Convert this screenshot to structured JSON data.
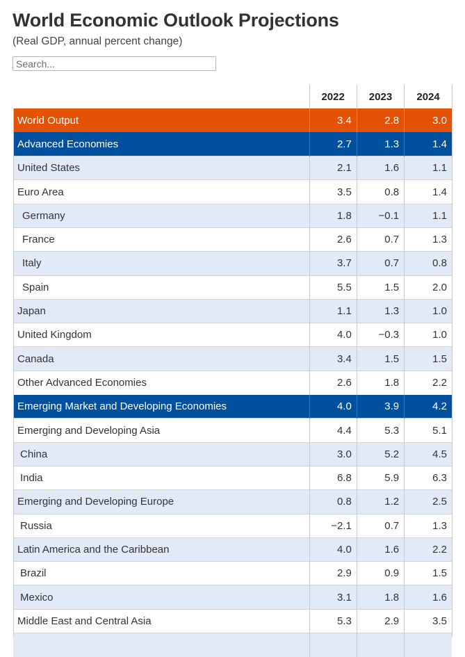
{
  "header": {
    "title": "World Economic Outlook Projections",
    "subtitle": "(Real GDP, annual percent change)"
  },
  "search": {
    "placeholder": "Search..."
  },
  "table": {
    "columns": [
      "",
      "2022",
      "2023",
      "2024"
    ],
    "rows": [
      {
        "name": "World Output",
        "v2022": "3.4",
        "v2023": "2.8",
        "v2024": "3.0",
        "style": "world",
        "indent": 0
      },
      {
        "name": "Advanced Economies",
        "v2022": "2.7",
        "v2023": "1.3",
        "v2024": "1.4",
        "style": "group",
        "indent": 0
      },
      {
        "name": "United States",
        "v2022": "2.1",
        "v2023": "1.6",
        "v2024": "1.1",
        "style": "band",
        "indent": 0
      },
      {
        "name": "Euro Area",
        "v2022": "3.5",
        "v2023": "0.8",
        "v2024": "1.4",
        "style": "plain",
        "indent": 0
      },
      {
        "name": "Germany",
        "v2022": "1.8",
        "v2023": "−0.1",
        "v2024": "1.1",
        "style": "band",
        "indent": 1
      },
      {
        "name": "France",
        "v2022": "2.6",
        "v2023": "0.7",
        "v2024": "1.3",
        "style": "plain",
        "indent": 1
      },
      {
        "name": "Italy",
        "v2022": "3.7",
        "v2023": "0.7",
        "v2024": "0.8",
        "style": "band",
        "indent": 1
      },
      {
        "name": "Spain",
        "v2022": "5.5",
        "v2023": "1.5",
        "v2024": "2.0",
        "style": "plain",
        "indent": 1
      },
      {
        "name": "Japan",
        "v2022": "1.1",
        "v2023": "1.3",
        "v2024": "1.0",
        "style": "band",
        "indent": 0
      },
      {
        "name": "United Kingdom",
        "v2022": "4.0",
        "v2023": "−0.3",
        "v2024": "1.0",
        "style": "plain",
        "indent": 0
      },
      {
        "name": "Canada",
        "v2022": "3.4",
        "v2023": "1.5",
        "v2024": "1.5",
        "style": "band",
        "indent": 0
      },
      {
        "name": "Other Advanced Economies",
        "v2022": "2.6",
        "v2023": "1.8",
        "v2024": "2.2",
        "style": "plain",
        "indent": 0
      },
      {
        "name": "Emerging Market and Developing Economies",
        "v2022": "4.0",
        "v2023": "3.9",
        "v2024": "4.2",
        "style": "group",
        "indent": 0
      },
      {
        "name": "Emerging and Developing Asia",
        "v2022": "4.4",
        "v2023": "5.3",
        "v2024": "5.1",
        "style": "plain",
        "indent": 0
      },
      {
        "name": "China",
        "v2022": "3.0",
        "v2023": "5.2",
        "v2024": "4.5",
        "style": "band",
        "indent": 2
      },
      {
        "name": "India",
        "v2022": "6.8",
        "v2023": "5.9",
        "v2024": "6.3",
        "style": "plain",
        "indent": 2
      },
      {
        "name": "Emerging and Developing Europe",
        "v2022": "0.8",
        "v2023": "1.2",
        "v2024": "2.5",
        "style": "band",
        "indent": 0
      },
      {
        "name": "Russia",
        "v2022": "−2.1",
        "v2023": "0.7",
        "v2024": "1.3",
        "style": "plain",
        "indent": 2
      },
      {
        "name": "Latin America and the Caribbean",
        "v2022": "4.0",
        "v2023": "1.6",
        "v2024": "2.2",
        "style": "band",
        "indent": 0
      },
      {
        "name": "Brazil",
        "v2022": "2.9",
        "v2023": "0.9",
        "v2024": "1.5",
        "style": "plain",
        "indent": 2
      },
      {
        "name": "Mexico",
        "v2022": "3.1",
        "v2023": "1.8",
        "v2024": "1.6",
        "style": "band",
        "indent": 2
      },
      {
        "name": "Middle East and Central Asia",
        "v2022": "5.3",
        "v2023": "2.9",
        "v2024": "3.5",
        "style": "plain",
        "indent": 0
      },
      {
        "name": "",
        "v2022": "",
        "v2023": "",
        "v2024": "",
        "style": "band",
        "indent": 0
      }
    ]
  },
  "colors": {
    "world_row": "#e35205",
    "group_row": "#00509e",
    "band_row": "#e2e9f7"
  }
}
